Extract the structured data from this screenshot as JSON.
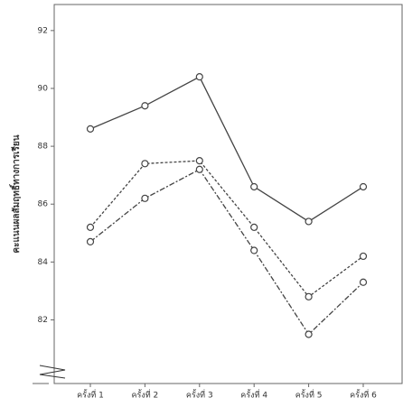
{
  "chart_data": {
    "type": "line",
    "y_label": "คะแนนผลสัมฤทธิ์ทางการเรียน",
    "categories": [
      "ครั้งที่ 1",
      "ครั้งที่ 2",
      "ครั้งที่ 3",
      "ครั้งที่ 4",
      "ครั้งที่ 5",
      "ครั้งที่ 6"
    ],
    "series": [
      {
        "color": "#444444",
        "dash": "solid",
        "values": [
          88.6,
          89.4,
          90.4,
          86.6,
          85.4,
          86.6
        ]
      },
      {
        "color": "#444444",
        "dash": "dotted",
        "values": [
          85.2,
          87.4,
          87.5,
          85.2,
          82.8,
          84.2
        ]
      },
      {
        "color": "#444444",
        "dash": "dashdot",
        "values": [
          84.7,
          86.2,
          87.2,
          84.4,
          81.5,
          83.3
        ]
      }
    ],
    "ylim": [
      79.8,
      92.9
    ],
    "yticks": [
      82,
      84,
      86,
      88,
      90,
      92
    ],
    "markers": true
  }
}
